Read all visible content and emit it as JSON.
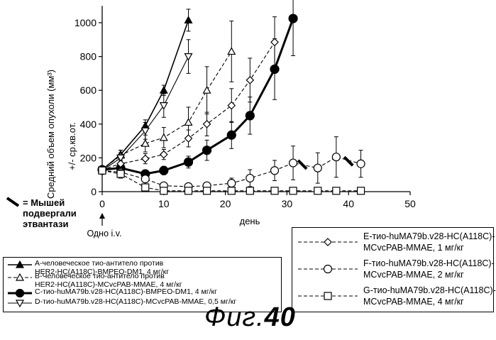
{
  "chart_data": {
    "type": "line",
    "ylabel": "Средний объем опухоли   (мм³)",
    "ylabel2": "+/- ср.кв.от.",
    "xlabel": "день",
    "xlim": [
      0,
      50
    ],
    "ylim": [
      0,
      1100
    ],
    "xticks": [
      0,
      10,
      20,
      30,
      40,
      50
    ],
    "yticks": [
      0,
      200,
      400,
      600,
      800,
      1000
    ],
    "series": [
      {
        "name": "A",
        "marker": "triangle-up",
        "style": "solid",
        "lineWidth": 1.6,
        "filled": true,
        "x": [
          0,
          3,
          7,
          10,
          14
        ],
        "y": [
          130,
          220,
          390,
          600,
          1015
        ],
        "err": [
          20,
          25,
          35,
          30,
          65
        ]
      },
      {
        "name": "B",
        "marker": "triangle-up",
        "style": "dashed",
        "lineWidth": 1.1,
        "filled": false,
        "x": [
          0,
          3,
          7,
          10,
          14,
          17,
          21
        ],
        "y": [
          130,
          215,
          285,
          320,
          410,
          600,
          830
        ],
        "err": [
          20,
          30,
          50,
          60,
          90,
          140,
          180
        ]
      },
      {
        "name": "C",
        "marker": "circle",
        "style": "solid",
        "lineWidth": 3,
        "filled": true,
        "x": [
          0,
          3,
          7,
          10,
          14,
          17,
          21,
          24,
          28,
          31
        ],
        "y": [
          130,
          140,
          105,
          125,
          175,
          245,
          335,
          450,
          725,
          1025
        ],
        "err": [
          15,
          20,
          20,
          25,
          35,
          60,
          80,
          110,
          180,
          220
        ]
      },
      {
        "name": "D",
        "marker": "triangle-down",
        "style": "solid",
        "lineWidth": 1.1,
        "filled": false,
        "x": [
          0,
          3,
          7,
          10,
          14
        ],
        "y": [
          125,
          200,
          360,
          510,
          800
        ],
        "err": [
          20,
          30,
          50,
          70,
          100
        ]
      },
      {
        "name": "E",
        "marker": "diamond",
        "style": "dashed",
        "lineWidth": 1.1,
        "filled": false,
        "x": [
          0,
          3,
          7,
          10,
          14,
          17,
          21,
          24,
          28
        ],
        "y": [
          130,
          165,
          195,
          220,
          315,
          400,
          510,
          660,
          885
        ],
        "err": [
          15,
          20,
          30,
          30,
          50,
          70,
          100,
          130,
          150
        ]
      },
      {
        "name": "F",
        "marker": "circle",
        "style": "dashed",
        "lineWidth": 1.1,
        "filled": false,
        "x": [
          0,
          3,
          7,
          10,
          14,
          17,
          21,
          24,
          28,
          31,
          35,
          38,
          42
        ],
        "y": [
          125,
          115,
          75,
          35,
          30,
          35,
          50,
          80,
          125,
          170,
          140,
          205,
          165
        ],
        "err": [
          15,
          20,
          30,
          15,
          15,
          20,
          30,
          50,
          60,
          100,
          90,
          120,
          80
        ]
      },
      {
        "name": "G",
        "marker": "square",
        "style": "dashed",
        "lineWidth": 1.1,
        "filled": false,
        "x": [
          0,
          3,
          7,
          10,
          14,
          17,
          21,
          24,
          28,
          31,
          35,
          38,
          42
        ],
        "y": [
          125,
          105,
          25,
          5,
          5,
          5,
          5,
          5,
          5,
          5,
          5,
          5,
          5
        ],
        "err": [
          15,
          25,
          10,
          5,
          0,
          0,
          0,
          0,
          0,
          0,
          0,
          0,
          0
        ]
      }
    ],
    "euthanasia_marks": [
      {
        "x": 32.5,
        "y": 160
      },
      {
        "x": 40,
        "y": 180
      }
    ]
  },
  "annotations": {
    "euthanasia_text": "= Мышей\nподвергали\nэтвантази",
    "dose_label": "Одно i.v."
  },
  "legend_left": [
    {
      "series": "A",
      "text": "А-человеческое тио-антитело против\nHER2-HC(A118C)-BMPEO-DM1, 4 мг/кг"
    },
    {
      "series": "B",
      "text": "В-Человеческое тио-антитело против\nHER2-HC(A118C)-MCvcPAB-MMAE, 4 мг/кг"
    },
    {
      "series": "C",
      "text": "C-тио-huMA79b.v28-HC(A118C)-BMPEO-DM1, 4 мг/кг"
    },
    {
      "series": "D",
      "text": "D-тио-huMA79b.v28-HC(A118C)-MCvcPAB-MMAE, 0,5 мг/кг"
    }
  ],
  "legend_right": [
    {
      "series": "E",
      "line1": "Е-тио-huMA79b.v28-HC(A118C)-",
      "line2": "MCvcPAB-MMAE, 1 мг/кг"
    },
    {
      "series": "F",
      "line1": "F-тио-huMA79b.v28-HC(A118C)-",
      "line2": "MCvcPAB-MMAE, 2 мг/кг"
    },
    {
      "series": "G",
      "line1": "G-тио-huMA79b.v28-HC(A118C)-",
      "line2": "MCvcPAB-MMAE, 4 мг/кг"
    }
  ],
  "caption": {
    "prefix": "Фиг.",
    "number": "40"
  }
}
